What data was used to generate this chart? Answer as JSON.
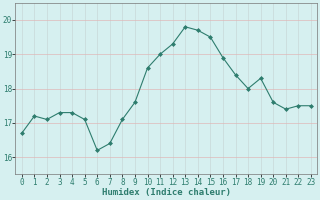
{
  "x": [
    0,
    1,
    2,
    3,
    4,
    5,
    6,
    7,
    8,
    9,
    10,
    11,
    12,
    13,
    14,
    15,
    16,
    17,
    18,
    19,
    20,
    21,
    22,
    23
  ],
  "y": [
    16.7,
    17.2,
    17.1,
    17.3,
    17.3,
    17.1,
    16.2,
    16.4,
    17.1,
    17.6,
    18.6,
    19.0,
    19.3,
    19.8,
    19.7,
    19.5,
    18.9,
    18.4,
    18.0,
    18.3,
    17.6,
    17.4,
    17.5,
    17.5
  ],
  "line_color": "#2e7d6e",
  "marker": "D",
  "marker_size": 2,
  "bg_color": "#d6f0f0",
  "grid_color_v": "#c8d8d8",
  "grid_color_h": "#e0b8b8",
  "xlabel": "Humidex (Indice chaleur)",
  "ylim": [
    15.5,
    20.5
  ],
  "xlim": [
    -0.5,
    23.5
  ],
  "yticks": [
    16,
    17,
    18,
    19,
    20
  ],
  "xticks": [
    0,
    1,
    2,
    3,
    4,
    5,
    6,
    7,
    8,
    9,
    10,
    11,
    12,
    13,
    14,
    15,
    16,
    17,
    18,
    19,
    20,
    21,
    22,
    23
  ],
  "label_fontsize": 6.5,
  "tick_fontsize": 5.5
}
